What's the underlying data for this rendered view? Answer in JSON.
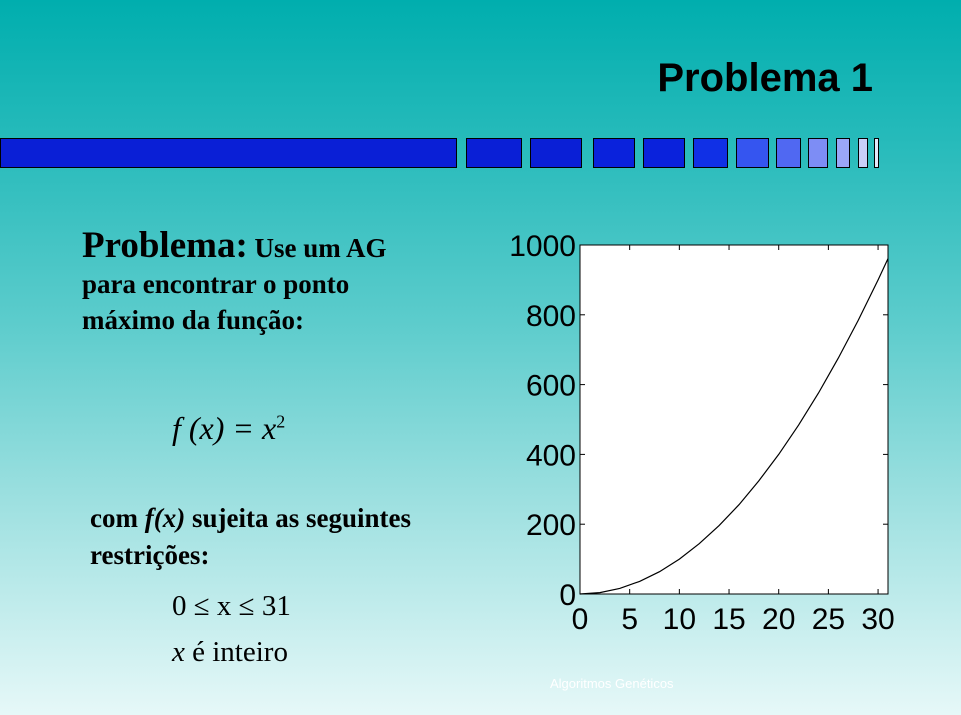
{
  "slide": {
    "title": "Problema 1",
    "problem_heading": "Problema:",
    "problem_text_1": " Use um AG",
    "problem_text_2": "para encontrar o ponto",
    "problem_text_3": "máximo da função:",
    "formula_lhs": "f (x) = x",
    "formula_exp": "2",
    "constraint_pre": "com ",
    "constraint_fx": "f(x)",
    "constraint_post": "  sujeita as seguintes",
    "constraint_line2": "restrições:",
    "condition_range": "0 ≤ x ≤ 31",
    "condition_int_var": "x",
    "condition_int_text": " é inteiro",
    "footer": "Algoritmos Genéticos"
  },
  "colors": {
    "deco_dark": "#0a1fd6",
    "deco_mid": "#1f3cf0",
    "deco_light": "#7d8df5",
    "deco_pale": "#c9cff8"
  },
  "chart_data": {
    "type": "line",
    "function": "x^2",
    "x": [
      0,
      2,
      4,
      6,
      8,
      10,
      12,
      14,
      16,
      18,
      20,
      22,
      24,
      26,
      28,
      30,
      31
    ],
    "y": [
      0,
      4,
      16,
      36,
      64,
      100,
      144,
      196,
      256,
      324,
      400,
      484,
      576,
      676,
      784,
      900,
      961
    ],
    "xlim": [
      0,
      31
    ],
    "ylim": [
      0,
      1000
    ],
    "xticks": [
      "0",
      "5",
      "10",
      "15",
      "20",
      "25",
      "30"
    ],
    "yticks": [
      "0",
      "200",
      "400",
      "600",
      "800",
      "1000"
    ],
    "xtick_values": [
      0,
      5,
      10,
      15,
      20,
      25,
      30
    ],
    "ytick_values": [
      0,
      200,
      400,
      600,
      800,
      1000
    ],
    "grid": false
  }
}
